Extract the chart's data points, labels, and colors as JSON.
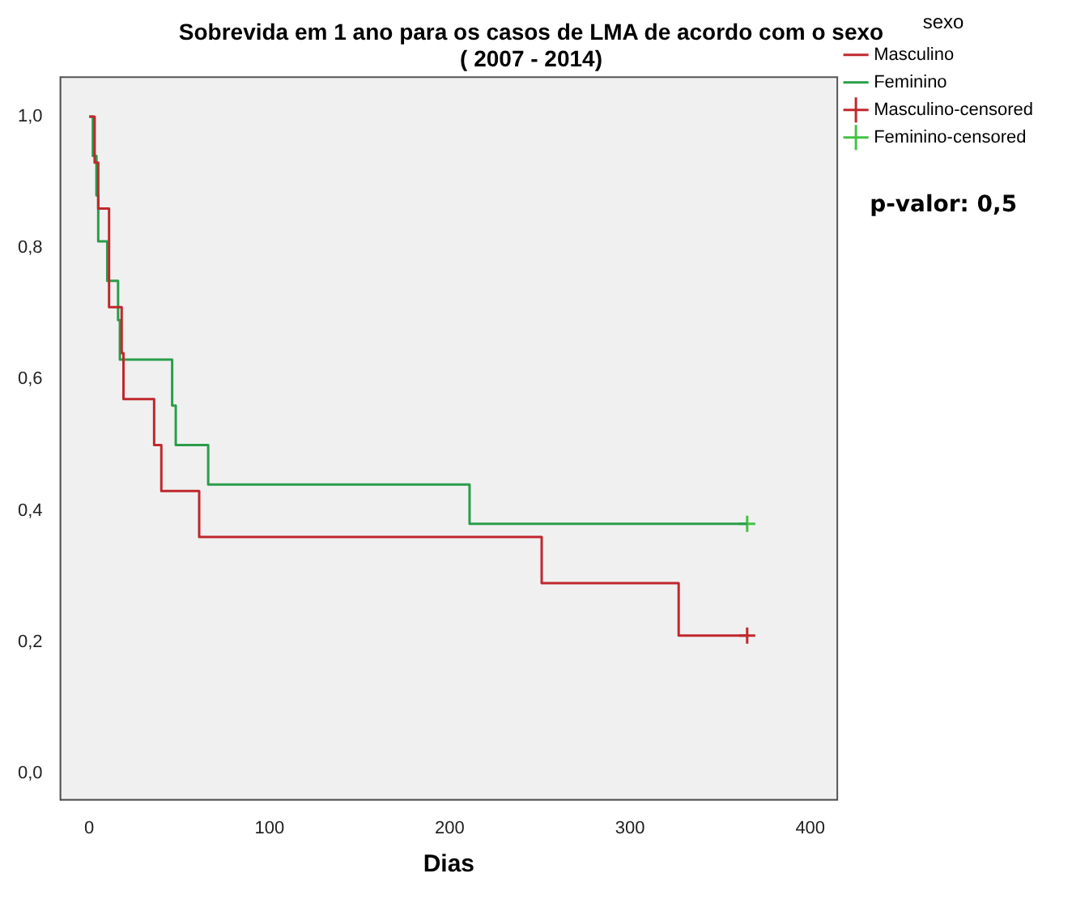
{
  "chart_data": {
    "type": "step",
    "title": "Sobrevida em 1 ano para os casos de LMA de acordo com o sexo",
    "subtitle": "( 2007 - 2014)",
    "xlabel": "Dias",
    "legend_title": "sexo",
    "legend": "right",
    "grid": false,
    "xlim": [
      -16,
      415
    ],
    "xticks": [
      0,
      100,
      200,
      300,
      400
    ],
    "ylim": [
      -0.04,
      1.06
    ],
    "yticks": [
      {
        "value": 0,
        "label": "0,0"
      },
      {
        "value": 0.2,
        "label": "0,2"
      },
      {
        "value": 0.4,
        "label": "0,4"
      },
      {
        "value": 0.6,
        "label": "0,6"
      },
      {
        "value": 0.8,
        "label": "0,8"
      },
      {
        "value": 1,
        "label": "1,0"
      }
    ],
    "annotations": [
      "p-valor: 0,5"
    ],
    "series": [
      {
        "name": "Masculino",
        "type": "step",
        "color": "#c0282d",
        "x": [
          0,
          3,
          5,
          11,
          18,
          19,
          36,
          40,
          61,
          251,
          327,
          365
        ],
        "values": [
          1,
          0.93,
          0.86,
          0.71,
          0.64,
          0.57,
          0.5,
          0.43,
          0.36,
          0.29,
          0.21,
          0.21
        ]
      },
      {
        "name": "Feminino",
        "type": "step",
        "color": "#2a9d4a",
        "x": [
          0,
          2,
          4,
          5,
          10,
          16,
          17,
          46,
          48,
          66,
          211,
          365
        ],
        "values": [
          1,
          0.94,
          0.88,
          0.81,
          0.75,
          0.69,
          0.63,
          0.56,
          0.5,
          0.44,
          0.38,
          0.38
        ]
      },
      {
        "name": "Masculino-censored",
        "type": "scatter",
        "marker": "cross",
        "color": "#c0282d",
        "x": [
          365
        ],
        "values": [
          0.21
        ]
      },
      {
        "name": "Feminino-censored",
        "type": "scatter",
        "marker": "cross",
        "color": "#44c244",
        "x": [
          365
        ],
        "values": [
          0.38
        ]
      }
    ]
  }
}
